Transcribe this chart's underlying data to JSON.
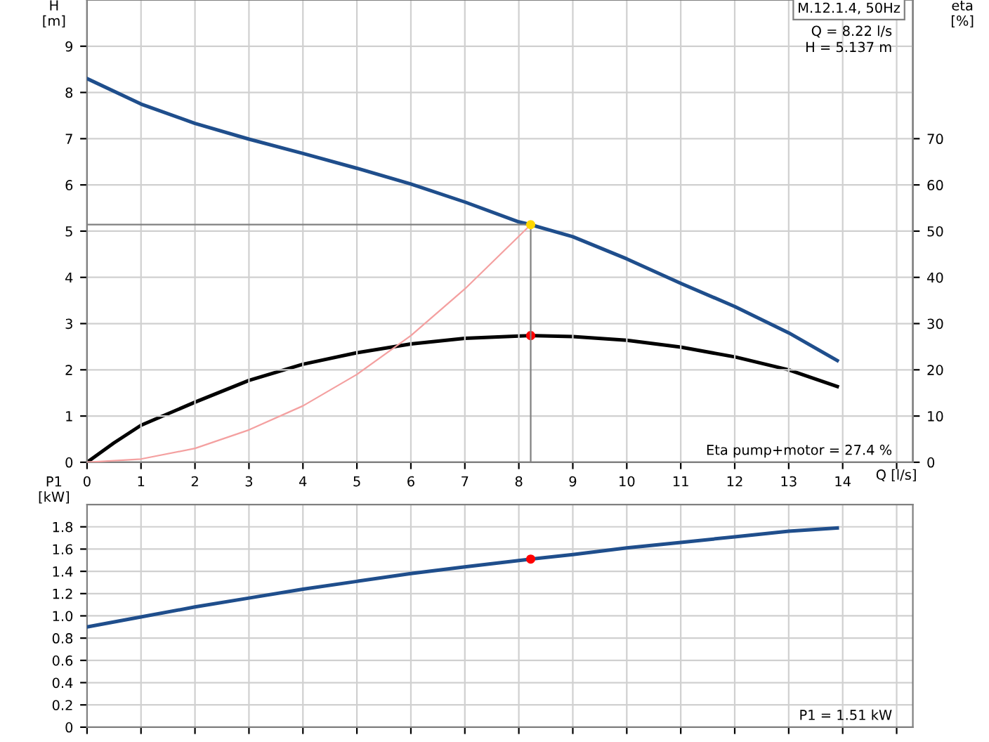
{
  "chart_data": [
    {
      "type": "line",
      "xlabel": "Q [l/s]",
      "ylabel": "H\n[m]",
      "y2label": "eta\n[%]",
      "xlim": [
        0,
        15.3
      ],
      "xticks": [
        0,
        1,
        2,
        3,
        4,
        5,
        6,
        7,
        8,
        9,
        10,
        11,
        12,
        13,
        14,
        {
          "value": 15,
          "label": null
        }
      ],
      "ylim": [
        0,
        10
      ],
      "yticks": [
        0,
        1,
        2,
        3,
        4,
        5,
        6,
        7,
        8,
        9
      ],
      "y2lim": [
        0,
        100
      ],
      "y2ticks": [
        0,
        10,
        20,
        30,
        40,
        50,
        60,
        70
      ],
      "grid": true,
      "legend": false,
      "line_style": "solid",
      "series": [
        {
          "color": "#1f4e8c",
          "x": [
            0,
            1,
            2,
            3,
            4,
            5,
            6,
            7,
            8,
            8.22,
            9,
            10,
            11,
            12,
            13,
            13.9
          ],
          "values": [
            8.3,
            7.75,
            7.33,
            6.99,
            6.68,
            6.36,
            6.02,
            5.63,
            5.2,
            5.14,
            4.88,
            4.4,
            3.87,
            3.37,
            2.8,
            2.2
          ]
        },
        {
          "color": "#000000",
          "axis": "y2",
          "x": [
            0,
            0.5,
            1,
            2,
            3,
            4,
            5,
            6,
            7,
            8,
            8.22,
            9,
            10,
            11,
            12,
            13,
            13.9
          ],
          "values": [
            0,
            4.2,
            8,
            13,
            17.7,
            21.2,
            23.7,
            25.6,
            26.8,
            27.3,
            27.4,
            27.2,
            26.4,
            24.9,
            22.8,
            20,
            16.4
          ]
        },
        {
          "color": "#f4a0a0",
          "x": [
            0,
            1,
            2,
            3,
            4,
            5,
            6,
            7,
            8.22
          ],
          "values": [
            0,
            0.07,
            0.3,
            0.7,
            1.22,
            1.9,
            2.74,
            3.75,
            5.14
          ]
        },
        {
          "color": "#808080",
          "x": [
            0,
            8.22
          ],
          "values": [
            5.14,
            5.14
          ]
        },
        {
          "color": "#808080",
          "x": [
            8.22,
            8.22
          ],
          "values": [
            0,
            5.14
          ]
        },
        {
          "type": "scatter",
          "marker": "circle",
          "color": "#ffd700",
          "x": [
            8.22
          ],
          "values": [
            5.14
          ]
        },
        {
          "type": "scatter",
          "marker": "circle",
          "color": "#ff0000",
          "axis": "y2",
          "x": [
            8.22
          ],
          "values": [
            27.4
          ]
        }
      ],
      "annotations": [
        "M.12.1.4, 50Hz",
        "Q = 8.22 l/s",
        "H = 5.137 m",
        "Eta pump+motor = 27.4 %"
      ]
    },
    {
      "type": "line",
      "ylabel": "P1\n[kW]",
      "tick_labels": "y",
      "xlim": [
        0,
        15.3
      ],
      "xticks": [
        0,
        1,
        2,
        3,
        4,
        5,
        6,
        7,
        8,
        9,
        10,
        11,
        12,
        13,
        14,
        15
      ],
      "ylim": [
        0,
        2.0
      ],
      "yticks": [
        0,
        0.2,
        0.4,
        0.6,
        0.8,
        {
          "value": 1.0,
          "label": "1.0"
        },
        1.2,
        1.4,
        1.6,
        1.8
      ],
      "grid": true,
      "legend": false,
      "line_style": "solid",
      "series": [
        {
          "color": "#1f4e8c",
          "x": [
            0,
            1,
            2,
            3,
            4,
            5,
            6,
            7,
            8.22,
            9,
            10,
            11,
            12,
            13,
            13.9
          ],
          "values": [
            0.9,
            0.99,
            1.08,
            1.16,
            1.24,
            1.31,
            1.38,
            1.44,
            1.51,
            1.55,
            1.61,
            1.66,
            1.71,
            1.76,
            1.79
          ]
        },
        {
          "type": "scatter",
          "marker": "circle",
          "color": "#ff0000",
          "x": [
            8.22
          ],
          "values": [
            1.51
          ]
        }
      ],
      "annotations": [
        "P1 = 1.51 kW"
      ]
    }
  ]
}
